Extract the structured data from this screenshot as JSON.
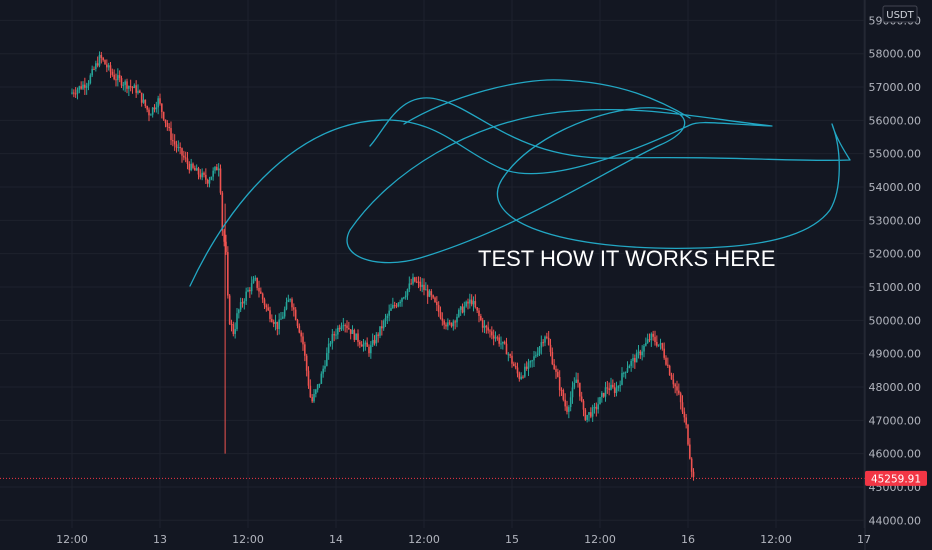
{
  "chart_data": {
    "type": "candlestick",
    "title": "",
    "currency": "USDT",
    "ylim": [
      44000,
      59200
    ],
    "y_ticks": [
      {
        "value": 44000,
        "label": "44000.00"
      },
      {
        "value": 45000,
        "label": "45000.00"
      },
      {
        "value": 46000,
        "label": "46000.00"
      },
      {
        "value": 47000,
        "label": "47000.00"
      },
      {
        "value": 48000,
        "label": "48000.00"
      },
      {
        "value": 49000,
        "label": "49000.00"
      },
      {
        "value": 50000,
        "label": "50000.00"
      },
      {
        "value": 51000,
        "label": "51000.00"
      },
      {
        "value": 52000,
        "label": "52000.00"
      },
      {
        "value": 53000,
        "label": "53000.00"
      },
      {
        "value": 54000,
        "label": "54000.00"
      },
      {
        "value": 55000,
        "label": "55000.00"
      },
      {
        "value": 56000,
        "label": "56000.00"
      },
      {
        "value": 57000,
        "label": "57000.00"
      },
      {
        "value": 58000,
        "label": "58000.00"
      },
      {
        "value": 59000,
        "label": "59000.00"
      }
    ],
    "x_ticks": [
      {
        "time": "12-12 12:00",
        "label": "12:00"
      },
      {
        "time": "12-13 00:00",
        "label": "13"
      },
      {
        "time": "12-13 12:00",
        "label": "12:00"
      },
      {
        "time": "12-14 00:00",
        "label": "14"
      },
      {
        "time": "12-14 12:00",
        "label": "12:00"
      },
      {
        "time": "12-15 00:00",
        "label": "15"
      },
      {
        "time": "12-15 12:00",
        "label": "12:00"
      },
      {
        "time": "12-16 00:00",
        "label": "16"
      },
      {
        "time": "12-16 12:00",
        "label": "12:00"
      },
      {
        "time": "12-17 00:00",
        "label": "17"
      }
    ],
    "close_path": [
      [
        -0.5,
        56800
      ],
      [
        -0.4,
        57150
      ],
      [
        -0.33,
        57900
      ],
      [
        -0.25,
        57300
      ],
      [
        -0.12,
        56900
      ],
      [
        -0.05,
        56200
      ],
      [
        0.0,
        56600
      ],
      [
        0.08,
        55400
      ],
      [
        0.18,
        54600
      ],
      [
        0.28,
        54200
      ],
      [
        0.33,
        54550
      ],
      [
        0.35,
        54700
      ],
      [
        0.36,
        52900
      ],
      [
        0.385,
        52000
      ],
      [
        0.4,
        50100
      ],
      [
        0.43,
        49600
      ],
      [
        0.45,
        50200
      ],
      [
        0.5,
        50800
      ],
      [
        0.55,
        51200
      ],
      [
        0.62,
        50300
      ],
      [
        0.68,
        49800
      ],
      [
        0.75,
        50700
      ],
      [
        0.82,
        49400
      ],
      [
        0.87,
        47500
      ],
      [
        0.92,
        48200
      ],
      [
        0.98,
        49400
      ],
      [
        1.05,
        50000
      ],
      [
        1.12,
        49500
      ],
      [
        1.2,
        49100
      ],
      [
        1.26,
        49700
      ],
      [
        1.32,
        50300
      ],
      [
        1.4,
        50800
      ],
      [
        1.45,
        51200
      ],
      [
        1.5,
        51000
      ],
      [
        1.55,
        50700
      ],
      [
        1.6,
        50200
      ],
      [
        1.65,
        49800
      ],
      [
        1.72,
        50300
      ],
      [
        1.78,
        50600
      ],
      [
        1.85,
        49800
      ],
      [
        1.92,
        49500
      ],
      [
        1.98,
        49100
      ],
      [
        2.05,
        48300
      ],
      [
        2.12,
        48700
      ],
      [
        2.2,
        49600
      ],
      [
        2.26,
        48400
      ],
      [
        2.32,
        47300
      ],
      [
        2.38,
        48300
      ],
      [
        2.42,
        47100
      ],
      [
        2.48,
        47300
      ],
      [
        2.55,
        48000
      ],
      [
        2.6,
        47900
      ],
      [
        2.66,
        48600
      ],
      [
        2.72,
        48900
      ],
      [
        2.8,
        49500
      ],
      [
        2.86,
        49200
      ],
      [
        2.91,
        48400
      ],
      [
        2.96,
        47700
      ],
      [
        3.0,
        46800
      ],
      [
        3.03,
        45600
      ],
      [
        3.04,
        45260
      ]
    ],
    "last_price": {
      "value": 45259.91,
      "label": "45259.91",
      "color": "#f23645"
    },
    "bull_color": "#26a69a",
    "bear_color": "#ef5350",
    "annotation": {
      "text": "TEST HOW IT WORKS HERE",
      "color": "#ffffff",
      "drawing_color": "#22a7c4"
    }
  },
  "colors": {
    "background": "#131722",
    "grid": "#1e222d",
    "axis_text": "#b2b5be"
  }
}
